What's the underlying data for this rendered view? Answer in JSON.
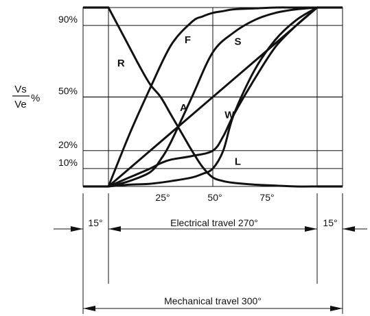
{
  "chart_data": {
    "type": "line",
    "ylabel_numerator": "Vs",
    "ylabel_denominator": "Ve",
    "ylabel_unit": "%",
    "y_ticks": [
      "90%",
      "50%",
      "20%",
      "10%"
    ],
    "x_ticks": [
      "25°",
      "50°",
      "75°"
    ],
    "xlim": [
      0,
      100
    ],
    "ylim": [
      0,
      100
    ],
    "grid": true,
    "series": [
      {
        "name": "R",
        "x": [
          0,
          5,
          10,
          15,
          20,
          25,
          30,
          35,
          40,
          45,
          50,
          55,
          60,
          70,
          80,
          90,
          100
        ],
        "y": [
          100,
          89,
          78,
          67,
          57,
          50,
          40,
          30,
          20,
          11,
          5,
          3,
          2,
          1,
          0.5,
          0,
          0
        ]
      },
      {
        "name": "F",
        "x": [
          0,
          10,
          20,
          30,
          40,
          45,
          50,
          55,
          60,
          70,
          80,
          90,
          100
        ],
        "y": [
          0,
          29,
          55,
          79,
          92,
          95,
          97,
          98,
          99,
          99.5,
          100,
          100,
          100
        ]
      },
      {
        "name": "S",
        "x": [
          0,
          10,
          20,
          25,
          30,
          40,
          50,
          60,
          70,
          80,
          90,
          100
        ],
        "y": [
          0,
          3,
          8,
          15,
          25,
          50,
          75,
          86,
          93,
          97,
          99,
          100
        ]
      },
      {
        "name": "A",
        "x": [
          0,
          25,
          50,
          75,
          100
        ],
        "y": [
          0,
          25,
          50,
          75,
          100
        ]
      },
      {
        "name": "W",
        "x": [
          0,
          10,
          20,
          25,
          30,
          40,
          50,
          55,
          60,
          70,
          80,
          90,
          100
        ],
        "y": [
          0,
          5,
          10,
          13,
          15,
          17,
          20,
          28,
          40,
          60,
          78,
          90,
          100
        ]
      },
      {
        "name": "L",
        "x": [
          0,
          10,
          20,
          30,
          40,
          45,
          50,
          55,
          60,
          70,
          80,
          90,
          100
        ],
        "y": [
          0,
          1,
          1.5,
          3,
          5,
          7,
          10,
          20,
          40,
          65,
          82,
          93,
          100
        ]
      }
    ],
    "label_positions_data": {
      "R": [
        6,
        69
      ],
      "F": [
        38,
        82
      ],
      "S": [
        62,
        81
      ],
      "A": [
        36,
        44
      ],
      "W": [
        58,
        40
      ],
      "L": [
        62,
        14
      ]
    },
    "travel": {
      "left_margin": "15°",
      "right_margin": "15°",
      "electrical": "Electrical travel 270°",
      "mechanical": "Mechanical travel 300°"
    }
  }
}
